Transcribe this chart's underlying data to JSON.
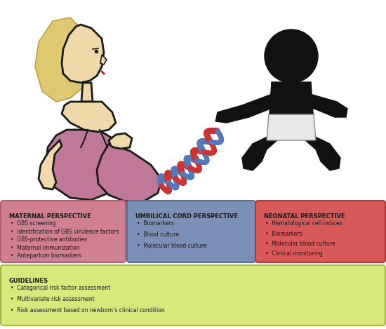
{
  "bg_color": "#ffffff",
  "box1": {
    "title": "MATERNAL PERSPECTIVE",
    "items": [
      "GBS screening",
      "Identification of GBS virulence factors",
      "GBS-protective antibodies",
      "Maternal immunization",
      "Antepartum biomarkers"
    ],
    "bg_color": "#d08090",
    "border_color": "#b06070"
  },
  "box2": {
    "title": "UMBILICAL CORD PERSPECTIVE",
    "items": [
      "Biomarkers",
      "Blood culture",
      "Molecular blood culture"
    ],
    "bg_color": "#7a90b8",
    "border_color": "#5a708a"
  },
  "box3": {
    "title": "NEONATAL PERSPECTIVE",
    "items": [
      "Hematological cell indices",
      "Biomarkers",
      "Molecular blood culture",
      "Clinical monitoring"
    ],
    "bg_color": "#d85858",
    "border_color": "#b03838"
  },
  "box4": {
    "title": "GUIDELINES",
    "items": [
      "Categorical risk factor assessment",
      "Multivariate risk assessment",
      "Risk assessment based on newborn’s clinical condition"
    ],
    "bg_color": "#d8e87a",
    "border_color": "#a8b848"
  },
  "title_fontsize": 6.0,
  "item_fontsize": 5.5,
  "text_color": "#1a1a1a",
  "hair_color": "#e0c870",
  "hair_edge": "#c0a040",
  "skin_color": "#f0d8a8",
  "skin_edge": "#1a1a1a",
  "dress_color": "#c07898",
  "dress_edge": "#1a1a1a",
  "baby_color": "#111111",
  "diaper_color": "#e8e8e8",
  "cord_red": "#cc3333",
  "cord_blue": "#5577bb"
}
